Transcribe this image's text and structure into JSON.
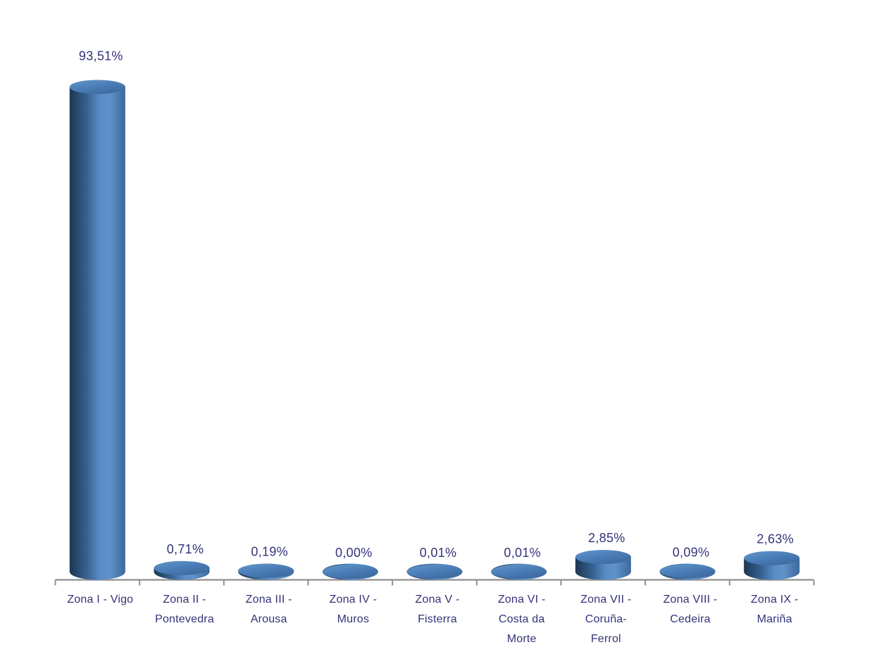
{
  "chart_data": {
    "type": "bar",
    "subtype": "cylinder-3d",
    "title": "",
    "xlabel": "",
    "ylabel": "",
    "legend_position": "none",
    "grid": false,
    "categories": [
      "Zona I - Vigo",
      "Zona II - Pontevedra",
      "Zona III - Arousa",
      "Zona IV - Muros",
      "Zona V - Fisterra",
      "Zona VI - Costa da Morte",
      "Zona VII - Coruña-Ferrol",
      "Zona VIII - Cedeira",
      "Zona IX - Mariña"
    ],
    "category_lines": [
      [
        "Zona I - Vigo"
      ],
      [
        "Zona II -",
        "Pontevedra"
      ],
      [
        "Zona III -",
        "Arousa"
      ],
      [
        "Zona IV -",
        "Muros"
      ],
      [
        "Zona V -",
        "Fisterra"
      ],
      [
        "Zona VI -",
        "Costa da",
        "Morte"
      ],
      [
        "Zona VII -",
        "Coruña-",
        "Ferrol"
      ],
      [
        "Zona VIII -",
        "Cedeira"
      ],
      [
        "Zona IX -",
        "Mariña"
      ]
    ],
    "values": [
      93.51,
      0.71,
      0.19,
      0.0,
      0.01,
      0.01,
      2.85,
      0.09,
      2.63
    ],
    "data_labels": [
      "93,51%",
      "0,71%",
      "0,19%",
      "0,00%",
      "0,01%",
      "0,01%",
      "2,85%",
      "0,09%",
      "2,63%"
    ],
    "value_axis_shown": false,
    "max_value": 93.51,
    "colors": {
      "bar_base": "#4f81bd",
      "bar_body_gradient": [
        "#1c3750",
        "#35608f",
        "#5a8dc6",
        "#5f92ca",
        "#3e689a"
      ],
      "bar_top_gradient": [
        "#6497cc",
        "#4a7cb6",
        "#3e6a9e"
      ],
      "label_text": "#333379",
      "axis_line": "#8f8f8f",
      "background": "#ffffff"
    }
  }
}
